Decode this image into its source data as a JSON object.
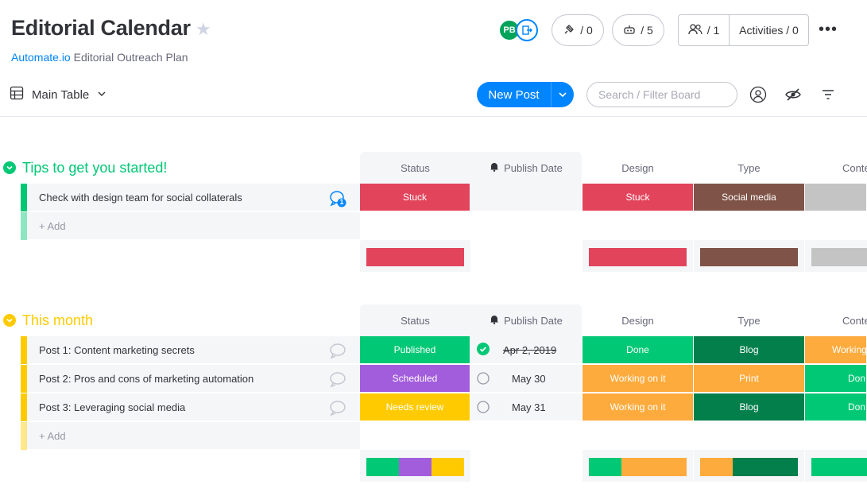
{
  "header": {
    "title": "Editorial Calendar",
    "subtitle_link": "Automate.io",
    "subtitle_rest": " Editorial Outreach Plan",
    "avatar_initials": "PB",
    "integrations_count": "/ 0",
    "automations_count": "/ 5",
    "people_count": "/ 1",
    "activities_label": "Activities / 0"
  },
  "toolbar": {
    "view_label": "Main Table",
    "new_post_label": "New Post",
    "search_placeholder": "Search / Filter Board"
  },
  "columns": {
    "status": "Status",
    "publish_date": "Publish Date",
    "design": "Design",
    "type": "Type",
    "content": "Conte"
  },
  "colors": {
    "stuck": "#e2445c",
    "social_media": "#7f5347",
    "grey": "#c4c4c4",
    "published": "#00c875",
    "scheduled": "#a25ddc",
    "needs_review": "#ffcb00",
    "done": "#00c875",
    "working": "#fdab3d",
    "blog": "#037f4c",
    "group1": "#00c875",
    "group2": "#ffcb00"
  },
  "groups": [
    {
      "title": "Tips to get you started!",
      "add_label": "+ Add",
      "rows": [
        {
          "name": "Check with design team for social collaterals",
          "status": "Stuck",
          "design": "Stuck",
          "type": "Social media",
          "content": "",
          "chat_count": "1"
        }
      ]
    },
    {
      "title": "This month",
      "add_label": "+ Add",
      "rows": [
        {
          "name": "Post 1: Content marketing secrets",
          "status": "Published",
          "date": "Apr 2, 2019",
          "design": "Done",
          "type": "Blog",
          "content": "Working"
        },
        {
          "name": "Post 2: Pros and cons of marketing automation",
          "status": "Scheduled",
          "date": "May 30",
          "design": "Working on it",
          "type": "Print",
          "content": "Don"
        },
        {
          "name": "Post 3: Leveraging social media",
          "status": "Needs review",
          "date": "May 31",
          "design": "Working on it",
          "type": "Blog",
          "content": "Don"
        }
      ]
    }
  ]
}
